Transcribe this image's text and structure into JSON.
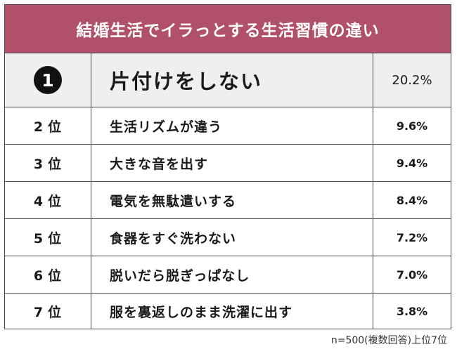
{
  "title": "結婚生活でイラっとする生活習慣の違い",
  "footnote": "n=500(複数回答)上位7位",
  "chart_data": {
    "type": "table",
    "title": "結婚生活でイラっとする生活習慣の違い",
    "unit": "%",
    "rows": [
      {
        "rank": "1",
        "item": "片付けをしない",
        "value": 20.2,
        "value_label": "20.2%"
      },
      {
        "rank": "2位",
        "item": "生活リズムが違う",
        "value": 9.6,
        "value_label": "9.6%"
      },
      {
        "rank": "3位",
        "item": "大きな音を出す",
        "value": 9.4,
        "value_label": "9.4%"
      },
      {
        "rank": "4位",
        "item": "電気を無駄遣いする",
        "value": 8.4,
        "value_label": "8.4%"
      },
      {
        "rank": "5位",
        "item": "食器をすぐ洗わない",
        "value": 7.2,
        "value_label": "7.2%"
      },
      {
        "rank": "6位",
        "item": "脱いだら脱ぎっぱなし",
        "value": 7.0,
        "value_label": "7.0%"
      },
      {
        "rank": "7位",
        "item": "服を裏返しのまま洗濯に出す",
        "value": 3.8,
        "value_label": "3.8%"
      }
    ],
    "colors": {
      "header": "#b0506a",
      "top_row": "#efefef",
      "badge": "#111111"
    }
  }
}
